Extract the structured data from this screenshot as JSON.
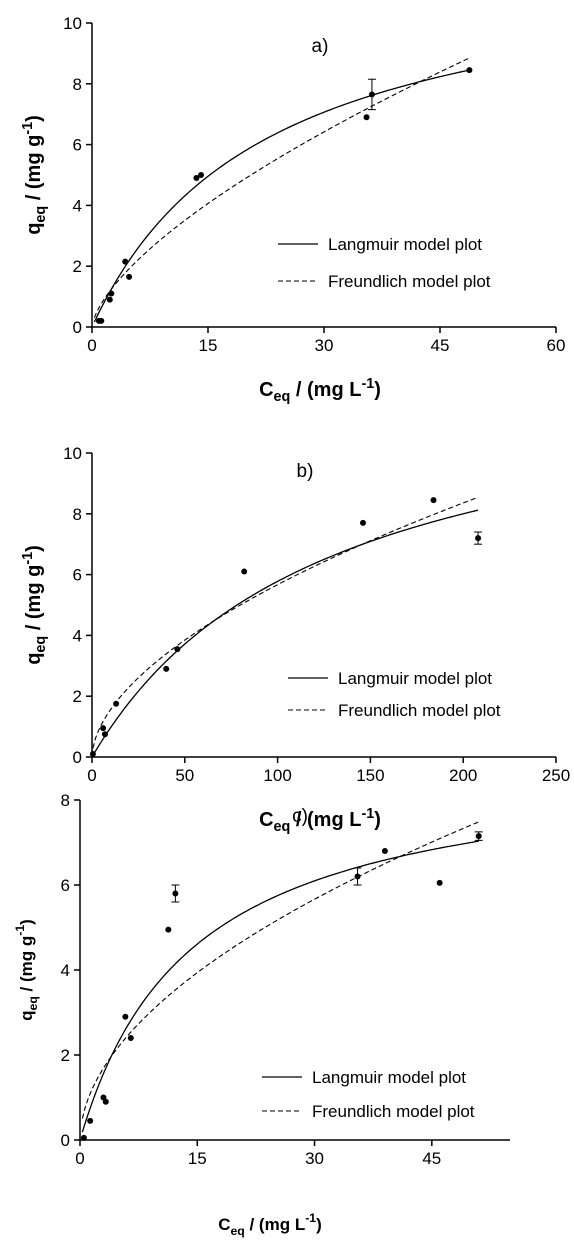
{
  "chart_data": [
    {
      "type": "scatter",
      "panel_label": "a)",
      "xlabel": "C",
      "xlabel_sub": "eq",
      "xlabel_unit": " / (mg L",
      "xlabel_sup": "-1",
      "xlabel_close": ")",
      "ylabel": "q",
      "ylabel_sub": "eq",
      "ylabel_unit": " / (mg g",
      "ylabel_sup": "-1",
      "ylabel_close": ")",
      "xlim": [
        0,
        60
      ],
      "ylim": [
        0,
        10
      ],
      "xticks": [
        0,
        15,
        30,
        45,
        60
      ],
      "yticks": [
        0,
        2,
        4,
        6,
        8,
        10
      ],
      "legend_position": "right-middle",
      "series": [
        {
          "name": "Langmuir model plot",
          "kind": "line",
          "style": "solid",
          "model": "langmuir",
          "qmax": 12.3,
          "K": 0.045,
          "x_range": [
            0.3,
            49
          ]
        },
        {
          "name": "Freundlich model plot",
          "kind": "line",
          "style": "dashed",
          "model": "freundlich",
          "Kf": 0.68,
          "n": 0.66,
          "x_range": [
            0.3,
            49
          ]
        },
        {
          "kind": "points",
          "x": [
            0.9,
            1.2,
            2.3,
            2.5,
            4.3,
            4.8,
            13.5,
            14.1,
            35.5,
            36.2,
            48.8
          ],
          "y": [
            0.2,
            0.2,
            0.9,
            1.1,
            2.15,
            1.65,
            4.9,
            5.0,
            6.9,
            7.65,
            8.45
          ],
          "err": [
            0,
            0,
            0,
            0,
            0,
            0,
            0,
            0,
            0,
            0.5,
            0
          ]
        }
      ]
    },
    {
      "type": "scatter",
      "panel_label": "b)",
      "xlabel": "C",
      "xlabel_sub": "eq",
      "xlabel_unit": " / (mg L",
      "xlabel_sup": "-1",
      "xlabel_close": ")",
      "ylabel": "q",
      "ylabel_sub": "eq",
      "ylabel_unit": " / (mg g",
      "ylabel_sup": "-1",
      "ylabel_close": ")",
      "xlim": [
        0,
        250
      ],
      "ylim": [
        0,
        10
      ],
      "xticks": [
        0,
        50,
        100,
        150,
        200,
        250
      ],
      "yticks": [
        0,
        2,
        4,
        6,
        8,
        10
      ],
      "legend_position": "right-bottom",
      "series": [
        {
          "name": "Langmuir model plot",
          "kind": "line",
          "style": "solid",
          "model": "langmuir",
          "qmax": 13.0,
          "K": 0.008,
          "x_range": [
            0.5,
            208
          ]
        },
        {
          "name": "Freundlich model plot",
          "kind": "line",
          "style": "dashed",
          "model": "freundlich",
          "Kf": 0.43,
          "n": 0.56,
          "x_range": [
            0.5,
            208
          ]
        },
        {
          "kind": "points",
          "x": [
            0.5,
            6,
            7,
            13,
            40,
            46,
            82,
            146,
            184,
            208
          ],
          "y": [
            0.1,
            0.95,
            0.75,
            1.75,
            2.9,
            3.55,
            6.1,
            7.7,
            8.45,
            7.2
          ],
          "err": [
            0,
            0,
            0,
            0,
            0,
            0,
            0,
            0,
            0,
            0.2
          ]
        }
      ]
    },
    {
      "type": "scatter",
      "panel_label": "c)",
      "xlabel": "C",
      "xlabel_sub": "eq",
      "xlabel_unit": " / (mg L",
      "xlabel_sup": "-1",
      "xlabel_close": ")",
      "ylabel": "q",
      "ylabel_sub": "eq",
      "ylabel_unit": " / (mg g",
      "ylabel_sup": "-1",
      "ylabel_close": ")",
      "xlim": [
        0,
        55
      ],
      "ylim": [
        0,
        8
      ],
      "xticks": [
        0,
        15,
        30,
        45
      ],
      "yticks": [
        0,
        2,
        4,
        6,
        8
      ],
      "legend_position": "right-bottom",
      "series": [
        {
          "name": "Langmuir model plot",
          "kind": "line",
          "style": "solid",
          "model": "langmuir",
          "qmax": 9.0,
          "K": 0.07,
          "x_range": [
            0.3,
            51
          ]
        },
        {
          "name": "Freundlich model plot",
          "kind": "line",
          "style": "dashed",
          "model": "freundlich",
          "Kf": 0.95,
          "n": 0.525,
          "x_range": [
            0.3,
            51
          ]
        },
        {
          "kind": "points",
          "x": [
            0.5,
            1.3,
            3.0,
            3.3,
            5.8,
            6.5,
            11.3,
            12.2,
            35.5,
            39.0,
            46.0,
            51.0
          ],
          "y": [
            0.05,
            0.45,
            1.0,
            0.9,
            2.9,
            2.4,
            4.95,
            5.8,
            6.2,
            6.8,
            6.05,
            7.15
          ],
          "err": [
            0,
            0,
            0,
            0,
            0,
            0,
            0,
            0.2,
            0.2,
            0,
            0,
            0.1
          ]
        }
      ]
    }
  ]
}
